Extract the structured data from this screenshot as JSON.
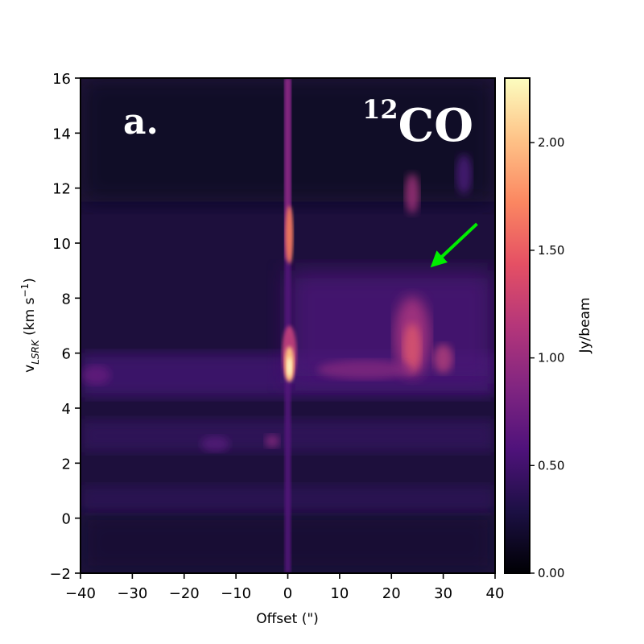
{
  "chart_data": {
    "type": "heatmap",
    "panel_label": "a.",
    "tracer_label": {
      "superscript": "12",
      "main": "CO"
    },
    "xlabel": "Offset (\")",
    "ylabel_parts": {
      "v": "v",
      "sub": "LSRK",
      "units": " (km s",
      "exp": "−1",
      "close": ")"
    },
    "xlim": [
      -40,
      40
    ],
    "ylim": [
      -2,
      16
    ],
    "xticks": [
      {
        "value": -40,
        "label": "−40"
      },
      {
        "value": -30,
        "label": "−30"
      },
      {
        "value": -20,
        "label": "−20"
      },
      {
        "value": -10,
        "label": "−10"
      },
      {
        "value": 0,
        "label": "0"
      },
      {
        "value": 10,
        "label": "10"
      },
      {
        "value": 20,
        "label": "20"
      },
      {
        "value": 30,
        "label": "30"
      },
      {
        "value": 40,
        "label": "40"
      }
    ],
    "yticks": [
      {
        "value": -2,
        "label": "−2"
      },
      {
        "value": 0,
        "label": "0"
      },
      {
        "value": 2,
        "label": "2"
      },
      {
        "value": 4,
        "label": "4"
      },
      {
        "value": 6,
        "label": "6"
      },
      {
        "value": 8,
        "label": "8"
      },
      {
        "value": 10,
        "label": "10"
      },
      {
        "value": 12,
        "label": "12"
      },
      {
        "value": 14,
        "label": "14"
      },
      {
        "value": 16,
        "label": "16"
      }
    ],
    "colorbar": {
      "label": "Jy/beam",
      "range": [
        0,
        2.3
      ],
      "colormap": "magma",
      "ticks": [
        {
          "value": 0.0,
          "label": "0.00"
        },
        {
          "value": 0.5,
          "label": "0.50"
        },
        {
          "value": 1.0,
          "label": "1.00"
        },
        {
          "value": 1.5,
          "label": "1.50"
        },
        {
          "value": 2.0,
          "label": "2.00"
        }
      ]
    },
    "arrow": {
      "color": "#00ee00",
      "from": [
        36.5,
        10.7
      ],
      "to": [
        27.5,
        9.1
      ]
    },
    "emission_features": [
      {
        "name": "central-line-upper",
        "offset": 0.0,
        "vlsrk": 10.2,
        "intensity": 1.7
      },
      {
        "name": "central-peak",
        "offset": 0.0,
        "vlsrk": 5.6,
        "intensity": 2.3
      },
      {
        "name": "east-cloud",
        "offset": 24,
        "vlsrk": 6.5,
        "intensity": 1.4
      },
      {
        "name": "east-blob-high",
        "offset": 24,
        "vlsrk": 11.8,
        "intensity": 1.2
      },
      {
        "name": "plateau-5kms",
        "offset": 20,
        "vlsrk": 5.3,
        "intensity": 1.0
      }
    ]
  },
  "colors": {
    "magma_stops": [
      "#000004",
      "#1c1044",
      "#4f127b",
      "#812581",
      "#b5367a",
      "#e55064",
      "#fb8761",
      "#fec287",
      "#fcfdbf"
    ]
  }
}
